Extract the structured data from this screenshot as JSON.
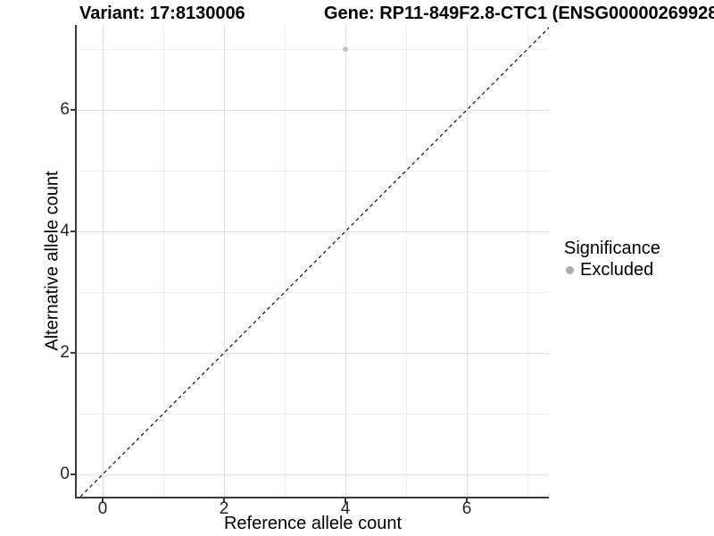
{
  "header": {
    "variant_title": "Variant: 17:8130006",
    "gene_title": "Gene: RP11-849F2.8-CTC1 (ENSG00000269928"
  },
  "chart_data": {
    "type": "scatter",
    "title": "Variant: 17:8130006    Gene: RP11-849F2.8-CTC1 (ENSG00000269928",
    "xlabel": "Reference allele count",
    "ylabel": "Alternative allele count",
    "xlim": [
      -0.45,
      7.45
    ],
    "ylim": [
      -0.45,
      7.45
    ],
    "x_ticks": [
      0,
      2,
      4,
      6
    ],
    "y_ticks": [
      0,
      2,
      4,
      6
    ],
    "x_tick_labels": [
      "0",
      "2",
      "4",
      "6"
    ],
    "y_tick_labels": [
      "0",
      "2",
      "4",
      "6"
    ],
    "x_minor_ticks": [
      1,
      3,
      5,
      7
    ],
    "y_minor_ticks": [
      1,
      3,
      5,
      7
    ],
    "grid": true,
    "series": [
      {
        "name": "Excluded",
        "points": [
          {
            "x": 4,
            "y": 7
          }
        ],
        "color": "#c3c3c3"
      }
    ],
    "identity_line": {
      "style": "dashed",
      "slope": 1,
      "intercept": 0,
      "color": "#111111"
    },
    "legend": {
      "title": "Significance",
      "position": "right",
      "items": [
        {
          "label": "Excluded",
          "color": "#ababab"
        }
      ]
    },
    "colors": {
      "background": "#ffffff",
      "grid_major": "#e2e2e2",
      "grid_minor": "#efefef",
      "axis_line": "#3a3a3a",
      "point": "#c3c3c3",
      "legend_point": "#ababab"
    }
  }
}
